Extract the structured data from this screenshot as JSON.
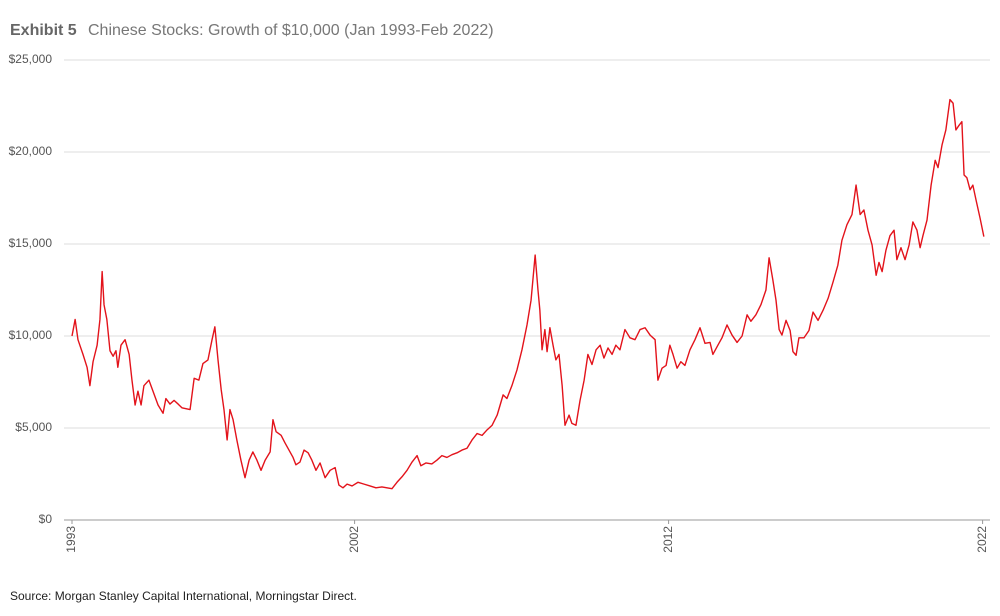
{
  "chart_data": {
    "type": "line",
    "title_label": "Exhibit 5",
    "title": "Chinese Stocks: Growth of $10,000 (Jan 1993-Feb 2022)",
    "source": "Source: Morgan Stanley Capital International, Morningstar Direct.",
    "xlim": [
      1993,
      2022.1
    ],
    "xticks": [
      1993,
      2002,
      2012,
      2022
    ],
    "ylim": [
      0,
      25000
    ],
    "yticks": [
      {
        "value": 0,
        "label": "$0"
      },
      {
        "value": 5000,
        "label": "$5,000"
      },
      {
        "value": 10000,
        "label": "$10,000"
      },
      {
        "value": 15000,
        "label": "$15,000"
      },
      {
        "value": 20000,
        "label": "$20,000"
      },
      {
        "value": 25000,
        "label": "$25,000"
      }
    ],
    "grid": true,
    "x": [
      1993.0,
      1993.1,
      1993.19,
      1993.35,
      1993.48,
      1993.57,
      1993.67,
      1993.8,
      1993.89,
      1993.96,
      1994.02,
      1994.11,
      1994.21,
      1994.31,
      1994.4,
      1994.46,
      1994.56,
      1994.69,
      1994.82,
      1994.91,
      1995.01,
      1995.1,
      1995.2,
      1995.29,
      1995.45,
      1995.58,
      1995.74,
      1995.9,
      1995.99,
      1996.12,
      1996.25,
      1996.38,
      1996.5,
      1996.76,
      1996.89,
      1997.04,
      1997.17,
      1997.33,
      1997.46,
      1997.55,
      1997.65,
      1997.75,
      1997.84,
      1997.94,
      1998.03,
      1998.13,
      1998.25,
      1998.38,
      1998.51,
      1998.64,
      1998.76,
      1998.89,
      1999.02,
      1999.15,
      1999.31,
      1999.4,
      1999.5,
      1999.66,
      1999.78,
      1999.91,
      2000.04,
      2000.13,
      2000.26,
      2000.39,
      2000.52,
      2000.64,
      2000.77,
      2000.9,
      2001.06,
      2001.22,
      2001.38,
      2001.5,
      2001.63,
      2001.76,
      2001.92,
      2002.11,
      2002.3,
      2002.49,
      2002.68,
      2002.87,
      2003.03,
      2003.19,
      2003.35,
      2003.51,
      2003.67,
      2003.83,
      2003.99,
      2004.11,
      2004.27,
      2004.46,
      2004.62,
      2004.78,
      2004.94,
      2005.1,
      2005.26,
      2005.42,
      2005.58,
      2005.74,
      2005.9,
      2006.06,
      2006.22,
      2006.38,
      2006.54,
      2006.73,
      2006.85,
      2007.01,
      2007.17,
      2007.33,
      2007.49,
      2007.62,
      2007.75,
      2007.84,
      2007.9,
      2007.97,
      2008.06,
      2008.13,
      2008.22,
      2008.32,
      2008.41,
      2008.51,
      2008.61,
      2008.7,
      2008.83,
      2008.92,
      2009.05,
      2009.18,
      2009.31,
      2009.43,
      2009.56,
      2009.69,
      2009.82,
      2009.94,
      2010.07,
      2010.2,
      2010.32,
      2010.45,
      2010.61,
      2010.77,
      2010.93,
      2011.09,
      2011.25,
      2011.41,
      2011.57,
      2011.66,
      2011.79,
      2011.92,
      2012.04,
      2012.14,
      2012.27,
      2012.39,
      2012.52,
      2012.68,
      2012.84,
      2013.0,
      2013.16,
      2013.32,
      2013.41,
      2013.57,
      2013.7,
      2013.86,
      2014.02,
      2014.18,
      2014.34,
      2014.5,
      2014.62,
      2014.78,
      2014.94,
      2015.1,
      2015.2,
      2015.32,
      2015.42,
      2015.52,
      2015.61,
      2015.74,
      2015.87,
      2015.96,
      2016.06,
      2016.15,
      2016.31,
      2016.47,
      2016.6,
      2016.76,
      2016.92,
      2017.08,
      2017.24,
      2017.39,
      2017.52,
      2017.68,
      2017.84,
      2017.97,
      2018.1,
      2018.22,
      2018.35,
      2018.48,
      2018.61,
      2018.7,
      2018.8,
      2018.92,
      2019.05,
      2019.18,
      2019.27,
      2019.4,
      2019.53,
      2019.66,
      2019.78,
      2019.91,
      2020.01,
      2020.1,
      2020.23,
      2020.36,
      2020.49,
      2020.58,
      2020.71,
      2020.83,
      2020.96,
      2021.06,
      2021.15,
      2021.25,
      2021.34,
      2021.41,
      2021.5,
      2021.6,
      2021.69,
      2021.79,
      2021.92,
      2022.04
    ],
    "series": [
      {
        "color": "#e3131b",
        "values": [
          10000,
          10900,
          9800,
          9000,
          8300,
          7300,
          8600,
          9500,
          10900,
          13500,
          11700,
          10900,
          9200,
          8900,
          9200,
          8300,
          9500,
          9800,
          9000,
          7600,
          6250,
          7000,
          6250,
          7300,
          7600,
          7000,
          6250,
          5800,
          6600,
          6300,
          6500,
          6300,
          6100,
          6000,
          7700,
          7600,
          8500,
          8700,
          9800,
          10500,
          8700,
          7100,
          6000,
          4350,
          6000,
          5450,
          4350,
          3250,
          2300,
          3250,
          3700,
          3250,
          2700,
          3250,
          3700,
          5450,
          4800,
          4600,
          4200,
          3800,
          3400,
          3000,
          3150,
          3800,
          3650,
          3250,
          2700,
          3100,
          2300,
          2700,
          2850,
          1900,
          1750,
          1950,
          1850,
          2050,
          1950,
          1850,
          1750,
          1800,
          1750,
          1700,
          2050,
          2350,
          2700,
          3150,
          3500,
          2950,
          3100,
          3050,
          3250,
          3500,
          3400,
          3550,
          3650,
          3800,
          3900,
          4350,
          4700,
          4600,
          4900,
          5150,
          5700,
          6800,
          6600,
          7300,
          8150,
          9250,
          10600,
          11950,
          14400,
          12500,
          11400,
          9250,
          10350,
          9150,
          10450,
          9500,
          8700,
          9000,
          7300,
          5150,
          5700,
          5250,
          5150,
          6500,
          7600,
          9000,
          8450,
          9250,
          9500,
          8800,
          9350,
          9000,
          9500,
          9250,
          10350,
          9900,
          9800,
          10350,
          10450,
          10050,
          9800,
          7600,
          8250,
          8400,
          9500,
          9000,
          8250,
          8600,
          8400,
          9250,
          9800,
          10450,
          9600,
          9650,
          9000,
          9500,
          9900,
          10600,
          10050,
          9650,
          10000,
          11150,
          10800,
          11150,
          11700,
          12500,
          14250,
          13050,
          11950,
          10350,
          10050,
          10850,
          10300,
          9150,
          8950,
          9900,
          9900,
          10300,
          11300,
          10850,
          11400,
          12050,
          12950,
          13850,
          15200,
          16050,
          16600,
          18200,
          16600,
          16850,
          15750,
          14950,
          13300,
          14000,
          13500,
          14650,
          15450,
          15750,
          14150,
          14800,
          14150,
          14950,
          16200,
          15750,
          14800,
          15450,
          16300,
          18200,
          19550,
          19150,
          20400,
          21200,
          22850,
          22650,
          21200,
          21450,
          21650,
          18750,
          18600,
          17950,
          18200,
          17400,
          16400,
          15400
        ]
      }
    ]
  }
}
